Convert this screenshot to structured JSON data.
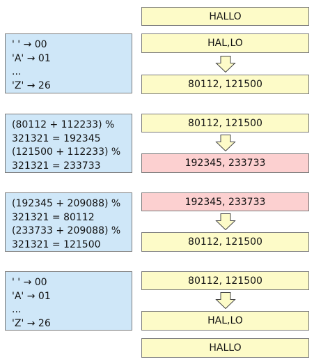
{
  "rows": {
    "r0": "HALLO",
    "r1": "HAL,LO",
    "r2": "80112, 121500",
    "r3": "80112, 121500",
    "r4": "192345, 233733",
    "r5": "192345, 233733",
    "r6": "80112, 121500",
    "r7": "80112, 121500",
    "r8": "HAL,LO",
    "r9": "HALLO"
  },
  "notes": {
    "encode": [
      "' ' → 00",
      "'A' → 01",
      "...",
      "'Z' → 26"
    ],
    "encrypt": [
      "(80112 + 112233) %",
      "321321 = 192345",
      "(121500 + 112233) %",
      "321321 = 233733"
    ],
    "decrypt": [
      "(192345 + 209088) %",
      "321321 = 80112",
      "(233733 + 209088) %",
      "321321 = 121500"
    ],
    "decode": [
      "' ' → 00",
      "'A' → 01",
      "...",
      "'Z' → 26"
    ]
  },
  "colors": {
    "box_yellow": "#fdfbc8",
    "box_pink": "#fcd0d0",
    "box_blue": "#cfe7f8",
    "arrow_fill": "#fdfbc8",
    "border": "#7a7a7a"
  }
}
